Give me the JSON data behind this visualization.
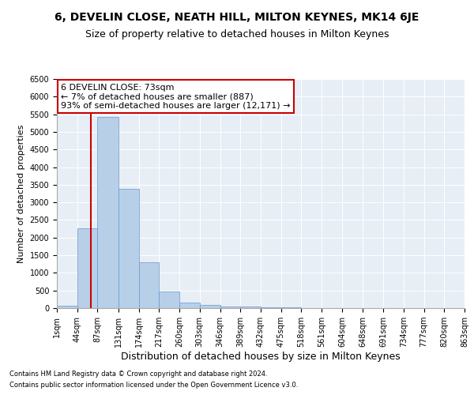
{
  "title": "6, DEVELIN CLOSE, NEATH HILL, MILTON KEYNES, MK14 6JE",
  "subtitle": "Size of property relative to detached houses in Milton Keynes",
  "xlabel": "Distribution of detached houses by size in Milton Keynes",
  "ylabel": "Number of detached properties",
  "footnote1": "Contains HM Land Registry data © Crown copyright and database right 2024.",
  "footnote2": "Contains public sector information licensed under the Open Government Licence v3.0.",
  "bin_edges": [
    1,
    44,
    87,
    131,
    174,
    217,
    260,
    303,
    346,
    389,
    432,
    475,
    518,
    561,
    604,
    648,
    691,
    734,
    777,
    820,
    863
  ],
  "bar_heights": [
    75,
    2270,
    5430,
    3380,
    1290,
    480,
    165,
    80,
    55,
    55,
    20,
    15,
    10,
    5,
    5,
    5,
    2,
    2,
    1,
    1
  ],
  "bar_color": "#b8cfe8",
  "bar_edge_color": "#6699cc",
  "property_size": 73,
  "vline_color": "#cc0000",
  "annotation_text": "6 DEVELIN CLOSE: 73sqm\n← 7% of detached houses are smaller (887)\n93% of semi-detached houses are larger (12,171) →",
  "annotation_box_facecolor": "white",
  "annotation_box_edgecolor": "#cc0000",
  "ylim": [
    0,
    6500
  ],
  "yticks": [
    0,
    500,
    1000,
    1500,
    2000,
    2500,
    3000,
    3500,
    4000,
    4500,
    5000,
    5500,
    6000,
    6500
  ],
  "background_color": "#e8eef5",
  "grid_color": "white",
  "title_fontsize": 10,
  "subtitle_fontsize": 9,
  "xlabel_fontsize": 9,
  "ylabel_fontsize": 8,
  "tick_fontsize": 7,
  "annotation_fontsize": 8,
  "footnote_fontsize": 6
}
